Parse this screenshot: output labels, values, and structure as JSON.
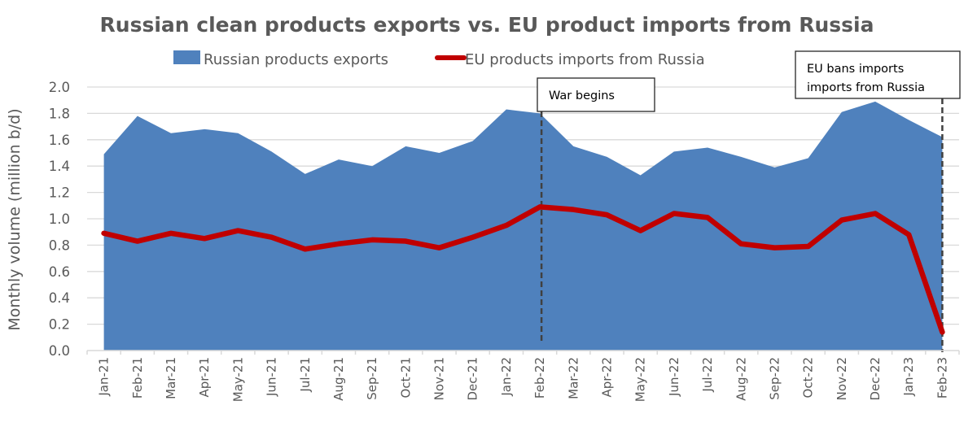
{
  "chart_data": {
    "type": "area",
    "title": "Russian clean products exports vs. EU product imports from Russia",
    "xlabel": "",
    "ylabel": "Monthly volume (million b/d)",
    "ylim": [
      0,
      2.0
    ],
    "yticks": [
      "0.0",
      "0.2",
      "0.4",
      "0.6",
      "0.8",
      "1.0",
      "1.2",
      "1.4",
      "1.6",
      "1.8",
      "2.0"
    ],
    "grid": true,
    "legend_position": "top-center",
    "categories": [
      "Jan-21",
      "Feb-21",
      "Mar-21",
      "Apr-21",
      "May-21",
      "Jun-21",
      "Jul-21",
      "Aug-21",
      "Sep-21",
      "Oct-21",
      "Nov-21",
      "Dec-21",
      "Jan-22",
      "Feb-22",
      "Mar-22",
      "Apr-22",
      "May-22",
      "Jun-22",
      "Jul-22",
      "Aug-22",
      "Sep-22",
      "Oct-22",
      "Nov-22",
      "Dec-22",
      "Jan-23",
      "Feb-23"
    ],
    "series": [
      {
        "name": "Russian products exports",
        "type": "area",
        "color": "#4f81bd",
        "values": [
          1.49,
          1.78,
          1.65,
          1.68,
          1.65,
          1.51,
          1.34,
          1.45,
          1.4,
          1.55,
          1.5,
          1.59,
          1.83,
          1.8,
          1.55,
          1.47,
          1.33,
          1.51,
          1.54,
          1.47,
          1.39,
          1.46,
          1.81,
          1.89,
          1.75,
          1.62
        ]
      },
      {
        "name": "EU products imports from Russia",
        "type": "line",
        "color": "#c00000",
        "values": [
          0.89,
          0.83,
          0.89,
          0.85,
          0.91,
          0.86,
          0.77,
          0.81,
          0.84,
          0.83,
          0.78,
          0.86,
          0.95,
          1.09,
          1.07,
          1.03,
          0.91,
          1.04,
          1.01,
          0.81,
          0.78,
          0.79,
          0.99,
          1.04,
          0.88,
          0.14
        ]
      }
    ],
    "annotations": [
      {
        "label": "War begins",
        "lines": [
          "War begins"
        ],
        "at_category": "Feb-22"
      },
      {
        "label": "EU bans imports imports from Russia",
        "lines": [
          "EU bans imports",
          "imports from Russia"
        ],
        "at_category": "Feb-23"
      }
    ]
  }
}
